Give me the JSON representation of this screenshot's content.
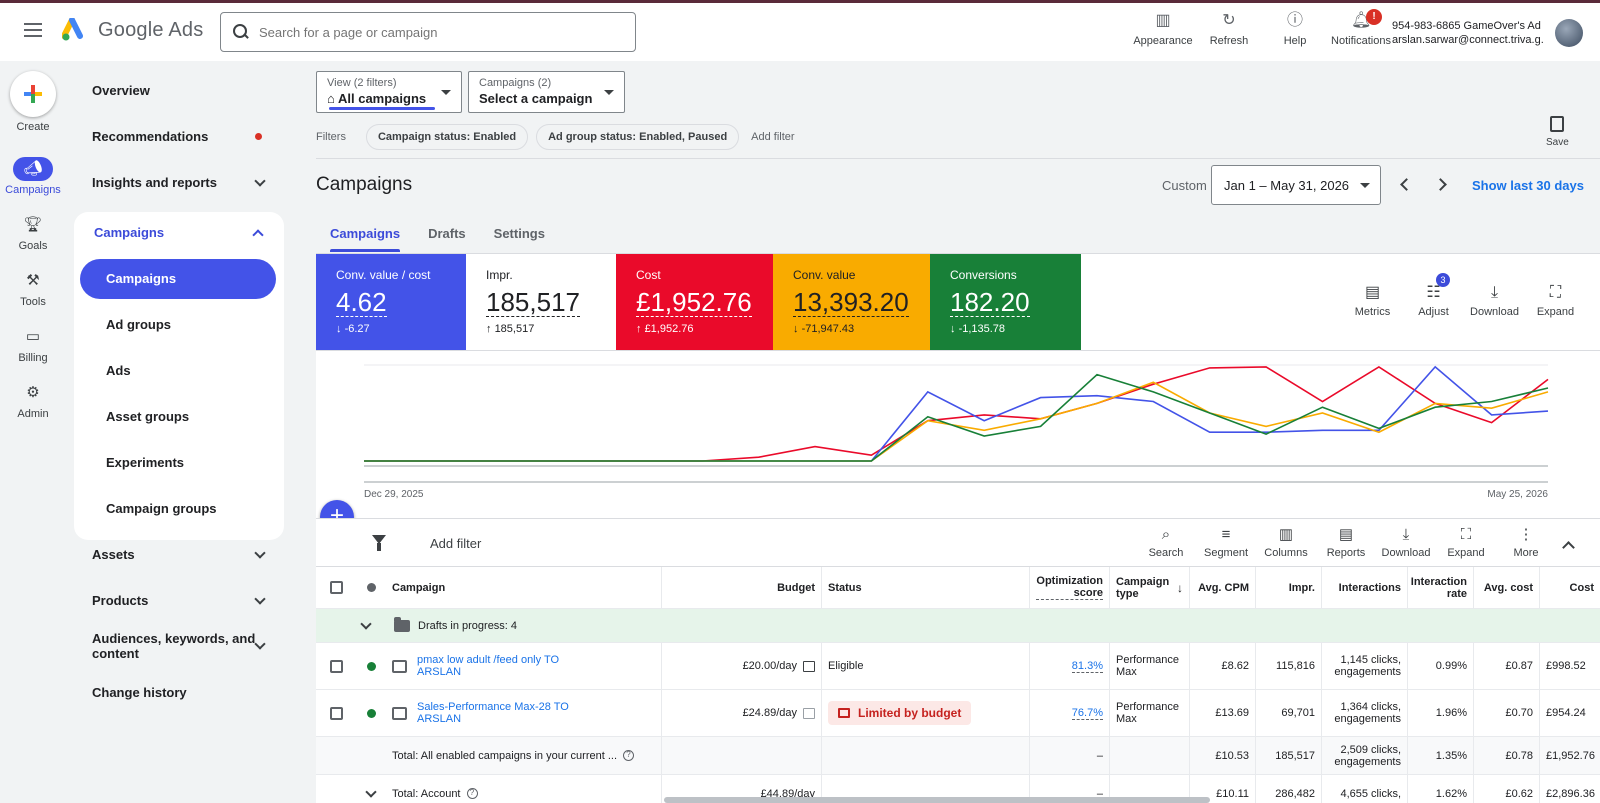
{
  "app": {
    "name": "Google Ads"
  },
  "search": {
    "placeholder": "Search for a page or campaign"
  },
  "top_actions": [
    {
      "label": "Appearance",
      "icon": "appearance-icon"
    },
    {
      "label": "Refresh",
      "icon": "refresh-icon"
    },
    {
      "label": "Help",
      "icon": "help-icon"
    },
    {
      "label": "Notifications",
      "icon": "bell-icon",
      "badge": "!"
    }
  ],
  "account": {
    "line1": "954-983-6865 GameOver's Ad ...",
    "line2": "arslan.sarwar@connect.triva.g..."
  },
  "rail": {
    "create": "Create",
    "items": [
      {
        "label": "Campaigns",
        "icon": "megaphone-icon",
        "active": true
      },
      {
        "label": "Goals",
        "icon": "trophy-icon"
      },
      {
        "label": "Tools",
        "icon": "tools-icon"
      },
      {
        "label": "Billing",
        "icon": "card-icon"
      },
      {
        "label": "Admin",
        "icon": "gear-icon"
      }
    ]
  },
  "nav": {
    "overview": "Overview",
    "recommendations": "Recommendations",
    "insights": "Insights and reports",
    "campaigns": "Campaigns",
    "sub": [
      "Campaigns",
      "Ad groups",
      "Ads",
      "Asset groups",
      "Experiments",
      "Campaign groups"
    ],
    "assets": "Assets",
    "products": "Products",
    "audiences_1": "Audiences, keywords, and",
    "audiences_2": "content",
    "change_history": "Change history"
  },
  "selectors": {
    "view_label": "View (2 filters)",
    "view_value": "All campaigns",
    "campaigns_label": "Campaigns (2)",
    "campaigns_value": "Select a campaign"
  },
  "filters": {
    "label": "Filters",
    "chips": [
      "Campaign status: Enabled",
      "Ad group status: Enabled, Paused"
    ],
    "add": "Add filter",
    "save": "Save"
  },
  "header": {
    "title": "Campaigns",
    "custom": "Custom",
    "date_range": "Jan 1 – May 31, 2026",
    "show_last": "Show last 30 days"
  },
  "tabs": [
    "Campaigns",
    "Drafts",
    "Settings"
  ],
  "scorecards": [
    {
      "label": "Conv. value / cost",
      "value": "4.62",
      "delta": "-6.27",
      "dir": "down",
      "bg": "#4353e8",
      "fg": "#ffffff"
    },
    {
      "label": "Impr.",
      "value": "185,517",
      "delta": "185,517",
      "dir": "up",
      "bg": "#ffffff",
      "fg": "#202124"
    },
    {
      "label": "Cost",
      "value": "£1,952.76",
      "delta": "£1,952.76",
      "dir": "up",
      "bg": "#ea0a2a",
      "fg": "#ffffff"
    },
    {
      "label": "Conv. value",
      "value": "13,393.20",
      "delta": "-71,947.43",
      "dir": "down",
      "bg": "#f9ab00",
      "fg": "#202124"
    },
    {
      "label": "Conversions",
      "value": "182.20",
      "delta": "-1,135.78",
      "dir": "down",
      "bg": "#188038",
      "fg": "#ffffff"
    }
  ],
  "chart_tools": [
    {
      "label": "Metrics",
      "icon": "metrics-icon"
    },
    {
      "label": "Adjust",
      "icon": "adjust-icon",
      "badge": "3"
    },
    {
      "label": "Download",
      "icon": "download-icon"
    },
    {
      "label": "Expand",
      "icon": "expand-icon"
    }
  ],
  "chart_data": {
    "type": "line",
    "x_start_label": "Dec 29, 2025",
    "x_end_label": "May 25, 2026",
    "x": [
      0,
      1,
      2,
      3,
      4,
      5,
      6,
      7,
      8,
      9,
      10,
      11,
      12,
      13,
      14,
      15,
      16,
      17,
      18,
      19,
      20,
      21
    ],
    "series": [
      {
        "color": "#ea0a2a",
        "values": [
          0,
          0,
          0,
          0,
          0,
          0,
          0,
          0.04,
          0.15,
          0.06,
          0.42,
          0.48,
          0.44,
          0.6,
          0.8,
          0.97,
          0.98,
          0.62,
          0.98,
          0.6,
          0.4,
          0.85
        ]
      },
      {
        "color": "#4353e8",
        "values": [
          0,
          0,
          0,
          0,
          0,
          0,
          0,
          0,
          0,
          0,
          0.72,
          0.42,
          0.66,
          0.68,
          0.62,
          0.3,
          0.3,
          0.32,
          0.32,
          0.98,
          0.48,
          0.52
        ]
      },
      {
        "color": "#f9ab00",
        "values": [
          0,
          0,
          0,
          0,
          0,
          0,
          0,
          0,
          0,
          0,
          0.42,
          0.32,
          0.44,
          0.6,
          0.82,
          0.5,
          0.36,
          0.5,
          0.3,
          0.6,
          0.55,
          0.72
        ]
      },
      {
        "color": "#188038",
        "values": [
          0,
          0,
          0,
          0,
          0,
          0,
          0,
          0,
          0,
          0,
          0.46,
          0.26,
          0.36,
          0.9,
          0.72,
          0.5,
          0.28,
          0.56,
          0.34,
          0.56,
          0.62,
          0.76
        ]
      }
    ],
    "ylim": [
      0,
      1
    ]
  },
  "table_toolbar": {
    "add_filter": "Add filter",
    "tools": [
      {
        "label": "Search",
        "icon": "search-icon"
      },
      {
        "label": "Segment",
        "icon": "segment-icon"
      },
      {
        "label": "Columns",
        "icon": "columns-icon"
      },
      {
        "label": "Reports",
        "icon": "reports-icon"
      },
      {
        "label": "Download",
        "icon": "download-icon"
      },
      {
        "label": "Expand",
        "icon": "expand-icon"
      },
      {
        "label": "More",
        "icon": "more-icon"
      }
    ]
  },
  "table": {
    "columns": [
      "Campaign",
      "Budget",
      "Status",
      "Optimization score",
      "Campaign type",
      "Avg. CPM",
      "Impr.",
      "Interactions",
      "Interaction rate",
      "Avg. cost",
      "Cost"
    ],
    "drafts": "Drafts in progress: 4",
    "rows": [
      {
        "name": "pmax low adult /feed only TO ARSLAN",
        "budget": "£20.00/day",
        "status": "Eligible",
        "score": "81.3%",
        "type": "Performance Max",
        "cpm": "£8.62",
        "impr": "115,816",
        "interactions": "1,145 clicks, engagements",
        "rate": "0.99%",
        "avg_cost": "£0.87",
        "cost": "£998.52"
      },
      {
        "name": "Sales-Performance Max-28 TO ARSLAN",
        "budget": "£24.89/day",
        "status": "Limited by budget",
        "score": "76.7%",
        "type": "Performance Max",
        "cpm": "£13.69",
        "impr": "69,701",
        "interactions": "1,364 clicks, engagements",
        "rate": "1.96%",
        "avg_cost": "£0.70",
        "cost": "£954.24"
      }
    ],
    "total_enabled": {
      "label": "Total: All enabled campaigns in your current ...",
      "score": "–",
      "cpm": "£10.53",
      "impr": "185,517",
      "interactions": "2,509 clicks, engagements",
      "rate": "1.35%",
      "avg_cost": "£0.78",
      "cost": "£1,952.76"
    },
    "total_account": {
      "label": "Total: Account",
      "budget": "£44.89/day",
      "score": "–",
      "cpm": "£10.11",
      "impr": "286,482",
      "interactions": "4,655 clicks,",
      "rate": "1.62%",
      "avg_cost": "£0.62",
      "cost": "£2,896.36"
    }
  }
}
